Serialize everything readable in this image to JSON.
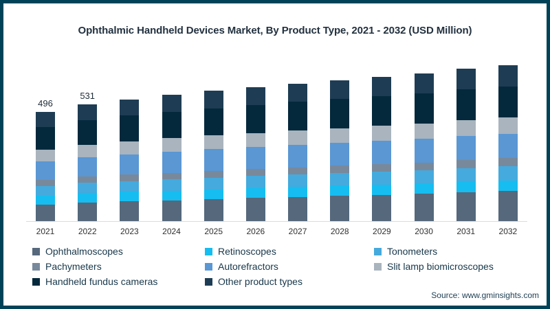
{
  "frame": {
    "border_color": "#004358",
    "background": "#ffffff"
  },
  "chart": {
    "title": "Ophthalmic Handheld Devices Market, By Product Type, 2021 - 2032 (USD Million)",
    "source": "Source: www.gminsights.com"
  },
  "chart_data": {
    "type": "bar",
    "stacked": true,
    "title": "Ophthalmic Handheld Devices Market, By Product Type, 2021 - 2032 (USD Million)",
    "xlabel": "",
    "ylabel": "",
    "ylim": [
      0,
      740
    ],
    "grid": false,
    "legend_position": "bottom",
    "categories": [
      "2021",
      "2022",
      "2023",
      "2024",
      "2025",
      "2026",
      "2027",
      "2028",
      "2029",
      "2030",
      "2031",
      "2032"
    ],
    "series": [
      {
        "name": "Ophthalmoscopes",
        "color": "#55687c",
        "values": [
          76,
          85,
          90,
          95,
          100,
          106,
          110,
          116,
          120,
          125,
          132,
          137
        ]
      },
      {
        "name": "Retinoscopes",
        "color": "#16bdf0",
        "values": [
          40,
          42,
          43,
          44,
          45,
          45,
          46,
          46,
          46,
          47,
          47,
          48
        ]
      },
      {
        "name": "Tonometers",
        "color": "#45aadd",
        "values": [
          44,
          47,
          49,
          51,
          53,
          54,
          56,
          57,
          59,
          60,
          62,
          64
        ]
      },
      {
        "name": "Pachymeters",
        "color": "#78899c",
        "values": [
          26,
          28,
          29,
          30,
          31,
          32,
          33,
          33,
          34,
          35,
          36,
          37
        ]
      },
      {
        "name": "Autorefractors",
        "color": "#5a97d3",
        "values": [
          85,
          90,
          93,
          96,
          98,
          100,
          102,
          104,
          105,
          107,
          110,
          111
        ]
      },
      {
        "name": "Slit lamp biomicroscopes",
        "color": "#a9b4be",
        "values": [
          53,
          56,
          59,
          61,
          62,
          64,
          66,
          67,
          69,
          70,
          72,
          74
        ]
      },
      {
        "name": "Handheld fundus cameras",
        "color": "#04293d",
        "values": [
          105,
          112,
          117,
          121,
          124,
          127,
          129,
          132,
          134,
          137,
          140,
          142
        ]
      },
      {
        "name": "Other product types",
        "color": "#1e3d54",
        "values": [
          67,
          71,
          74,
          77,
          79,
          82,
          84,
          86,
          88,
          91,
          93,
          96
        ]
      }
    ],
    "totals": [
      496,
      531,
      554,
      575,
      592,
      610,
      626,
      641,
      655,
      672,
      692,
      709
    ],
    "data_labels": [
      "496",
      "531",
      "",
      "",
      "",
      "",
      "",
      "",
      "",
      "",
      "",
      ""
    ]
  }
}
